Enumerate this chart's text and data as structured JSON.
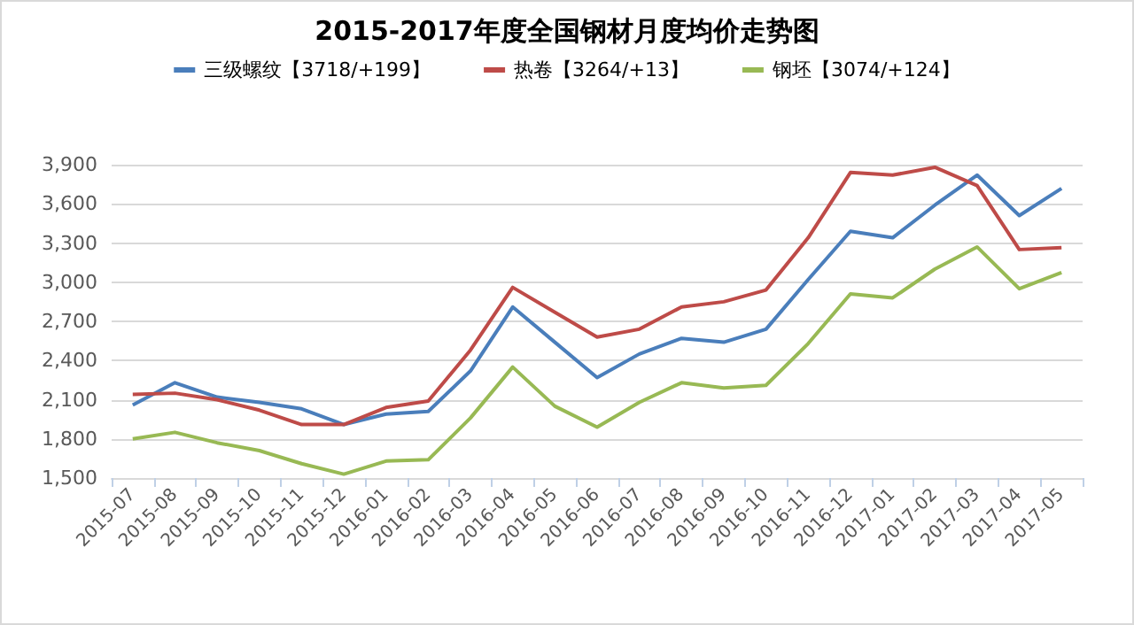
{
  "chart_data": {
    "type": "line",
    "title": "2015-2017年度全国钢材月度均价走势图",
    "categories": [
      "2015-07",
      "2015-08",
      "2015-09",
      "2015-10",
      "2015-11",
      "2015-12",
      "2016-01",
      "2016-02",
      "2016-03",
      "2016-04",
      "2016-05",
      "2016-06",
      "2016-07",
      "2016-08",
      "2016-09",
      "2016-10",
      "2016-11",
      "2016-12",
      "2017-01",
      "2017-02",
      "2017-03",
      "2017-04",
      "2017-05"
    ],
    "series": [
      {
        "name": "三级螺纹【3718/+199】",
        "color": "#4a7ebb",
        "values": [
          2060,
          2230,
          2120,
          2080,
          2030,
          1910,
          1990,
          2010,
          2320,
          2810,
          2540,
          2270,
          2450,
          2570,
          2540,
          2640,
          3020,
          3390,
          3340,
          3590,
          3820,
          3510,
          3718
        ]
      },
      {
        "name": "热卷【3264/+13】",
        "color": "#be4b48",
        "values": [
          2140,
          2150,
          2100,
          2020,
          1910,
          1910,
          2040,
          2090,
          2480,
          2960,
          2770,
          2580,
          2640,
          2810,
          2850,
          2940,
          3340,
          3840,
          3820,
          3880,
          3740,
          3250,
          3264
        ]
      },
      {
        "name": "钢坯【3074/+124】",
        "color": "#98b954",
        "values": [
          1800,
          1850,
          1770,
          1710,
          1610,
          1530,
          1630,
          1640,
          1960,
          2350,
          2050,
          1890,
          2080,
          2230,
          2190,
          2210,
          2530,
          2910,
          2880,
          3100,
          3270,
          2950,
          3074
        ]
      }
    ],
    "ylim": [
      1500,
      3900
    ],
    "yticks": [
      {
        "value": 1500,
        "label": "1,500"
      },
      {
        "value": 1800,
        "label": "1,800"
      },
      {
        "value": 2100,
        "label": "2,100"
      },
      {
        "value": 2400,
        "label": "2,400"
      },
      {
        "value": 2700,
        "label": "2,700"
      },
      {
        "value": 3000,
        "label": "3,000"
      },
      {
        "value": 3300,
        "label": "3,300"
      },
      {
        "value": 3600,
        "label": "3,600"
      },
      {
        "value": 3900,
        "label": "3,900"
      }
    ],
    "grid": "y",
    "legend": "top",
    "marker": "none",
    "line_style": "solid"
  }
}
